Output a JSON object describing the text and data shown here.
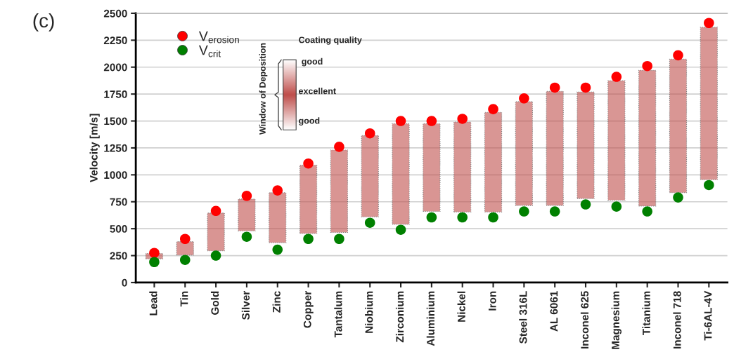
{
  "chart_data": {
    "type": "bar",
    "ylabel": "Velocity [m/s]",
    "categories": [
      "Lead",
      "Tin",
      "Gold",
      "Silver",
      "Zinc",
      "Copper",
      "Tantalum",
      "Niobium",
      "Zirconium",
      "Aluminium",
      "Nickel",
      "Iron",
      "Steel 316L",
      "AL 6061",
      "Inconel 625",
      "Magnesium",
      "Titanium",
      "Inconel 718",
      "Ti-6AL-4V"
    ],
    "series": [
      {
        "color": "#c0504d",
        "base": [
          220,
          255,
          295,
          480,
          370,
          455,
          465,
          610,
          540,
          660,
          655,
          655,
          715,
          715,
          780,
          765,
          710,
          835,
          955
        ],
        "values": [
          50,
          125,
          350,
          295,
          465,
          635,
          765,
          755,
          935,
          815,
          835,
          925,
          965,
          1060,
          990,
          1110,
          1260,
          1240,
          1415
        ]
      },
      {
        "type": "scatter",
        "name": "V$_{erosion}$",
        "color": "#ff0000",
        "values": [
          275,
          405,
          665,
          805,
          855,
          1105,
          1260,
          1385,
          1500,
          1500,
          1520,
          1610,
          1710,
          1810,
          1810,
          1910,
          2010,
          2110,
          2410
        ]
      },
      {
        "type": "scatter",
        "name": "V$_{crit}$",
        "color": "#008000",
        "values": [
          190,
          210,
          250,
          425,
          305,
          405,
          405,
          555,
          490,
          605,
          605,
          605,
          660,
          660,
          725,
          705,
          660,
          790,
          905
        ]
      }
    ],
    "ylim": [
      0,
      2500
    ],
    "yticks": [
      0,
      250,
      500,
      750,
      1000,
      1250,
      1500,
      1750,
      2000,
      2250,
      2500
    ],
    "grid": "y",
    "legend": "top left",
    "marker": "circle",
    "annotations": [
      "(c)",
      "Coating quality",
      "good",
      "excellent",
      "good",
      "Window of Deposition"
    ]
  }
}
